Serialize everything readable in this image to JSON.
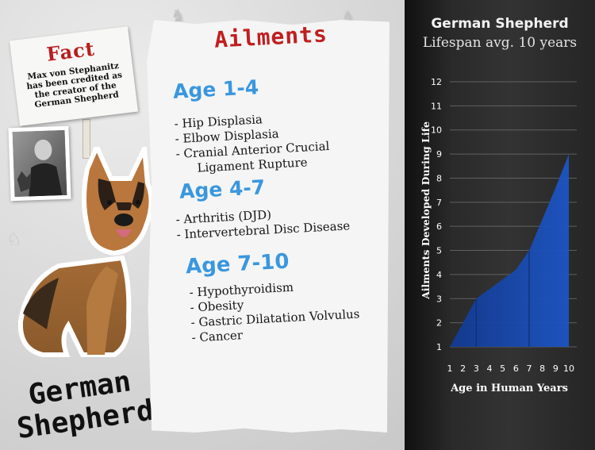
{
  "left": {
    "fact_title": "Fact",
    "fact_text": "Max von Stephanitz has been credited as the creator of the German Shepherd",
    "brand_line1": "German",
    "brand_line2": "Shepherd"
  },
  "ailments": {
    "title": "Ailments",
    "groups": [
      {
        "age": "Age 1-4",
        "items": [
          "- Hip Displasia",
          "- Elbow Displasia",
          "- Cranial Anterior Crucial",
          "Ligament Rupture"
        ]
      },
      {
        "age": "Age 4-7",
        "items": [
          "- Arthritis (DJD)",
          "- Intervertebral Disc Disease"
        ]
      },
      {
        "age": "Age 7-10",
        "items": [
          "- Hypothyroidism",
          "- Obesity",
          "- Gastric Dilatation Volvulus",
          "- Cancer"
        ]
      }
    ]
  },
  "chart_data": {
    "type": "area",
    "title": "German Shepherd",
    "subtitle": "Lifespan avg. 10 years",
    "xlabel": "Age in Human Years",
    "ylabel": "Ailments Developed During Life",
    "x": [
      1,
      2,
      3,
      4,
      5,
      6,
      7,
      8,
      9,
      10
    ],
    "values": [
      1,
      2,
      3,
      3.4,
      3.8,
      4.2,
      5,
      6.3,
      7.6,
      9
    ],
    "xlim": [
      1,
      10
    ],
    "ylim": [
      1,
      12
    ],
    "yticks": [
      1,
      2,
      3,
      4,
      5,
      6,
      7,
      8,
      9,
      10,
      11,
      12
    ],
    "grid": true,
    "colors": {
      "fill": "#1d55c4",
      "fill_dark": "#123a91",
      "text": "#ffffff"
    }
  }
}
